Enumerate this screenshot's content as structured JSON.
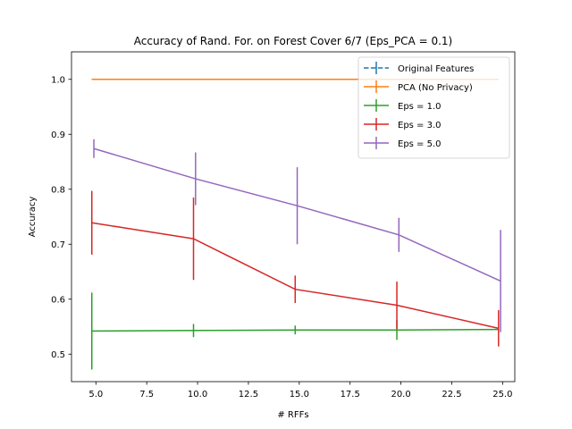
{
  "chart_data": {
    "type": "line",
    "title": "Accuracy of Rand. For. on Forest Cover 6/7 (Eps_PCA = 0.1)",
    "xlabel": "# RFFs",
    "ylabel": "Accuracy",
    "xlim": [
      3.8,
      25.6
    ],
    "ylim": [
      0.45,
      1.05
    ],
    "xticks": [
      5,
      7.5,
      10,
      12.5,
      15,
      17.5,
      20,
      22.5,
      25
    ],
    "xtick_labels": [
      "5.0",
      "7.5",
      "10.0",
      "12.5",
      "15.0",
      "17.5",
      "20.0",
      "22.5",
      "25.0"
    ],
    "yticks": [
      0.5,
      0.6,
      0.7,
      0.8,
      0.9,
      1.0
    ],
    "ytick_labels": [
      "0.5",
      "0.6",
      "0.7",
      "0.8",
      "0.9",
      "1.0"
    ],
    "grid": false,
    "legend_position": "top-right",
    "series": [
      {
        "name": "Original Features",
        "color": "#1f77b4",
        "dashed": true,
        "x": [
          4.8,
          24.8
        ],
        "y": [
          1.0,
          1.0
        ],
        "err": [
          0,
          0
        ]
      },
      {
        "name": "PCA (No Privacy)",
        "color": "#ff7f0e",
        "dashed": false,
        "x": [
          4.8,
          24.8
        ],
        "y": [
          1.0,
          1.0
        ],
        "err": [
          0,
          0
        ]
      },
      {
        "name": "Eps = 1.0",
        "color": "#2ca02c",
        "dashed": false,
        "x": [
          4.8,
          9.8,
          14.8,
          19.8,
          24.8
        ],
        "y": [
          0.542,
          0.543,
          0.544,
          0.544,
          0.545
        ],
        "err": [
          0.07,
          0.012,
          0.008,
          0.018,
          0.004
        ]
      },
      {
        "name": "Eps = 3.0",
        "color": "#d62728",
        "dashed": false,
        "x": [
          4.8,
          9.8,
          14.8,
          19.8,
          24.8
        ],
        "y": [
          0.739,
          0.71,
          0.618,
          0.589,
          0.547
        ],
        "err": [
          0.058,
          0.075,
          0.025,
          0.043,
          0.033
        ]
      },
      {
        "name": "Eps = 5.0",
        "color": "#9467bd",
        "dashed": false,
        "x": [
          4.9,
          9.9,
          14.9,
          19.9,
          24.9
        ],
        "y": [
          0.874,
          0.819,
          0.77,
          0.717,
          0.633
        ],
        "err": [
          0.017,
          0.048,
          0.07,
          0.031,
          0.093
        ]
      }
    ]
  }
}
